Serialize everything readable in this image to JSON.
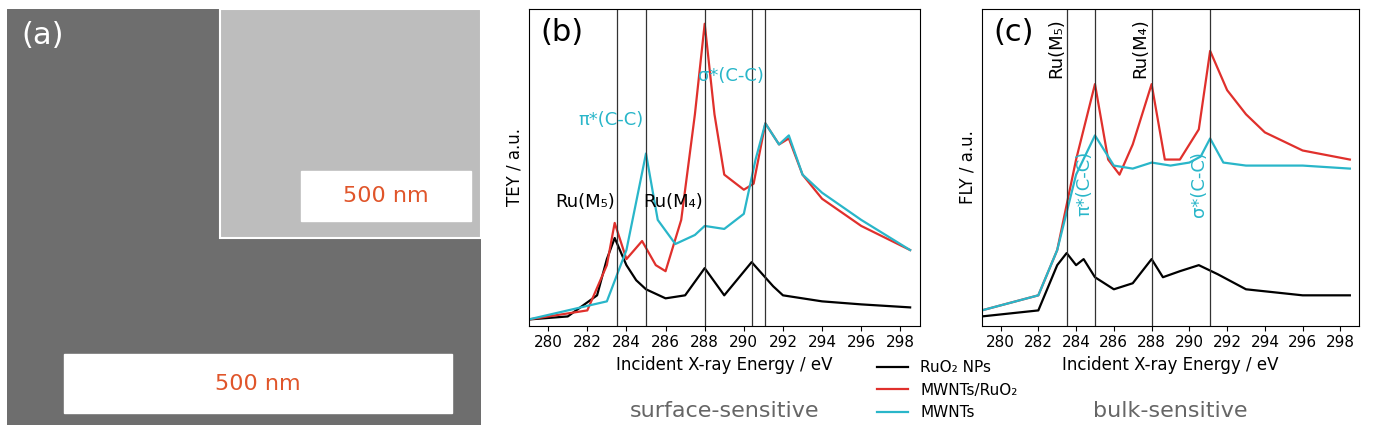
{
  "chart_data": [
    {
      "type": "image",
      "panel_label": "(a)",
      "scale_bars": [
        "500 nm",
        "500 nm"
      ]
    },
    {
      "type": "line",
      "panel_label": "(b)",
      "ylabel": "TEY / a.u.",
      "xlabel": "Incident X-ray Energy / eV",
      "note": "surface-sensitive",
      "tick_labels": "x",
      "legend": "lower center",
      "xlim": [
        279,
        299
      ],
      "xticks": [
        280,
        282,
        284,
        286,
        288,
        290,
        292,
        294,
        296,
        298
      ],
      "ylim": [
        0,
        1.05
      ],
      "vlines": [
        283.5,
        285.0,
        288.0,
        290.4,
        291.1
      ],
      "annotations": [
        {
          "text": "Ru(M₅)",
          "x": 283.5,
          "color": "#000000"
        },
        {
          "text": "π*(C-C)",
          "x": 285.0,
          "color": "#29b6c9"
        },
        {
          "text": "Ru(M₄)",
          "x": 288.0,
          "color": "#000000"
        },
        {
          "text": "σ*(C-C)",
          "x": 291.1,
          "color": "#29b6c9"
        }
      ],
      "series": [
        {
          "name": "RuO₂ NPs",
          "color": "#000000",
          "x": [
            279,
            281,
            282.5,
            283,
            283.4,
            284,
            284.5,
            285,
            286,
            287,
            288,
            289,
            290.4,
            291.5,
            292,
            294,
            296,
            298.5
          ],
          "values": [
            0.02,
            0.03,
            0.1,
            0.22,
            0.29,
            0.2,
            0.15,
            0.12,
            0.09,
            0.1,
            0.19,
            0.1,
            0.21,
            0.13,
            0.1,
            0.08,
            0.07,
            0.06
          ]
        },
        {
          "name": "MWNTs/RuO₂",
          "color": "#e0302c",
          "x": [
            279,
            282,
            283,
            283.4,
            284,
            284.8,
            285.5,
            286,
            286.8,
            287.5,
            288,
            288.5,
            289,
            290,
            290.5,
            291.1,
            291.8,
            292.3,
            293,
            294,
            296,
            298.5
          ],
          "values": [
            0.02,
            0.05,
            0.2,
            0.34,
            0.22,
            0.28,
            0.2,
            0.18,
            0.35,
            0.7,
            1.0,
            0.7,
            0.5,
            0.45,
            0.47,
            0.67,
            0.6,
            0.62,
            0.5,
            0.42,
            0.33,
            0.25
          ]
        },
        {
          "name": "MWNTs",
          "color": "#29b6c9",
          "x": [
            279,
            283,
            284,
            285,
            285.6,
            286.5,
            287.5,
            288,
            289,
            290,
            290.6,
            291.1,
            291.8,
            292.3,
            293,
            294,
            296,
            298.5
          ],
          "values": [
            0.02,
            0.08,
            0.25,
            0.57,
            0.35,
            0.27,
            0.3,
            0.33,
            0.32,
            0.37,
            0.55,
            0.67,
            0.6,
            0.63,
            0.5,
            0.44,
            0.35,
            0.25
          ]
        }
      ]
    },
    {
      "type": "line",
      "panel_label": "(c)",
      "ylabel": "FLY / a.u.",
      "xlabel": "Incident X-ray Energy / eV",
      "note": "bulk-sensitive",
      "tick_labels": "x",
      "xlim": [
        279,
        299
      ],
      "xticks": [
        280,
        282,
        284,
        286,
        288,
        290,
        292,
        294,
        296,
        298
      ],
      "ylim": [
        0,
        1.05
      ],
      "vlines": [
        283.5,
        285.0,
        288.0,
        291.1
      ],
      "annotations": [
        {
          "text": "Ru(M₅)",
          "x": 283.5,
          "color": "#000000"
        },
        {
          "text": "π*(C-C)",
          "x": 285.0,
          "color": "#29b6c9"
        },
        {
          "text": "Ru(M₄)",
          "x": 288.0,
          "color": "#000000"
        },
        {
          "text": "σ*(C-C)",
          "x": 291.1,
          "color": "#29b6c9"
        }
      ],
      "series": [
        {
          "name": "RuO₂ NPs",
          "color": "#000000",
          "x": [
            279,
            282,
            283,
            283.5,
            284,
            284.4,
            285,
            286,
            287,
            288,
            288.6,
            289.5,
            290.5,
            291.5,
            293,
            296,
            298.5
          ],
          "values": [
            0.03,
            0.05,
            0.2,
            0.24,
            0.2,
            0.22,
            0.16,
            0.12,
            0.14,
            0.22,
            0.16,
            0.18,
            0.2,
            0.17,
            0.12,
            0.1,
            0.1
          ]
        },
        {
          "name": "MWNTs/RuO₂",
          "color": "#e0302c",
          "x": [
            279,
            282,
            283,
            284,
            285,
            285.7,
            286.3,
            287,
            288,
            288.7,
            289.5,
            290.5,
            291.1,
            292,
            293,
            294,
            296,
            298.5
          ],
          "values": [
            0.05,
            0.1,
            0.25,
            0.55,
            0.8,
            0.55,
            0.5,
            0.6,
            0.8,
            0.55,
            0.55,
            0.65,
            0.91,
            0.78,
            0.7,
            0.64,
            0.58,
            0.55
          ]
        },
        {
          "name": "MWNTs",
          "color": "#29b6c9",
          "x": [
            279,
            282,
            283,
            284,
            285,
            286,
            287,
            288,
            289,
            290,
            290.6,
            291.1,
            291.8,
            293,
            296,
            298.5
          ],
          "values": [
            0.05,
            0.1,
            0.25,
            0.5,
            0.63,
            0.53,
            0.52,
            0.54,
            0.53,
            0.54,
            0.56,
            0.62,
            0.54,
            0.53,
            0.53,
            0.52
          ]
        }
      ]
    }
  ]
}
